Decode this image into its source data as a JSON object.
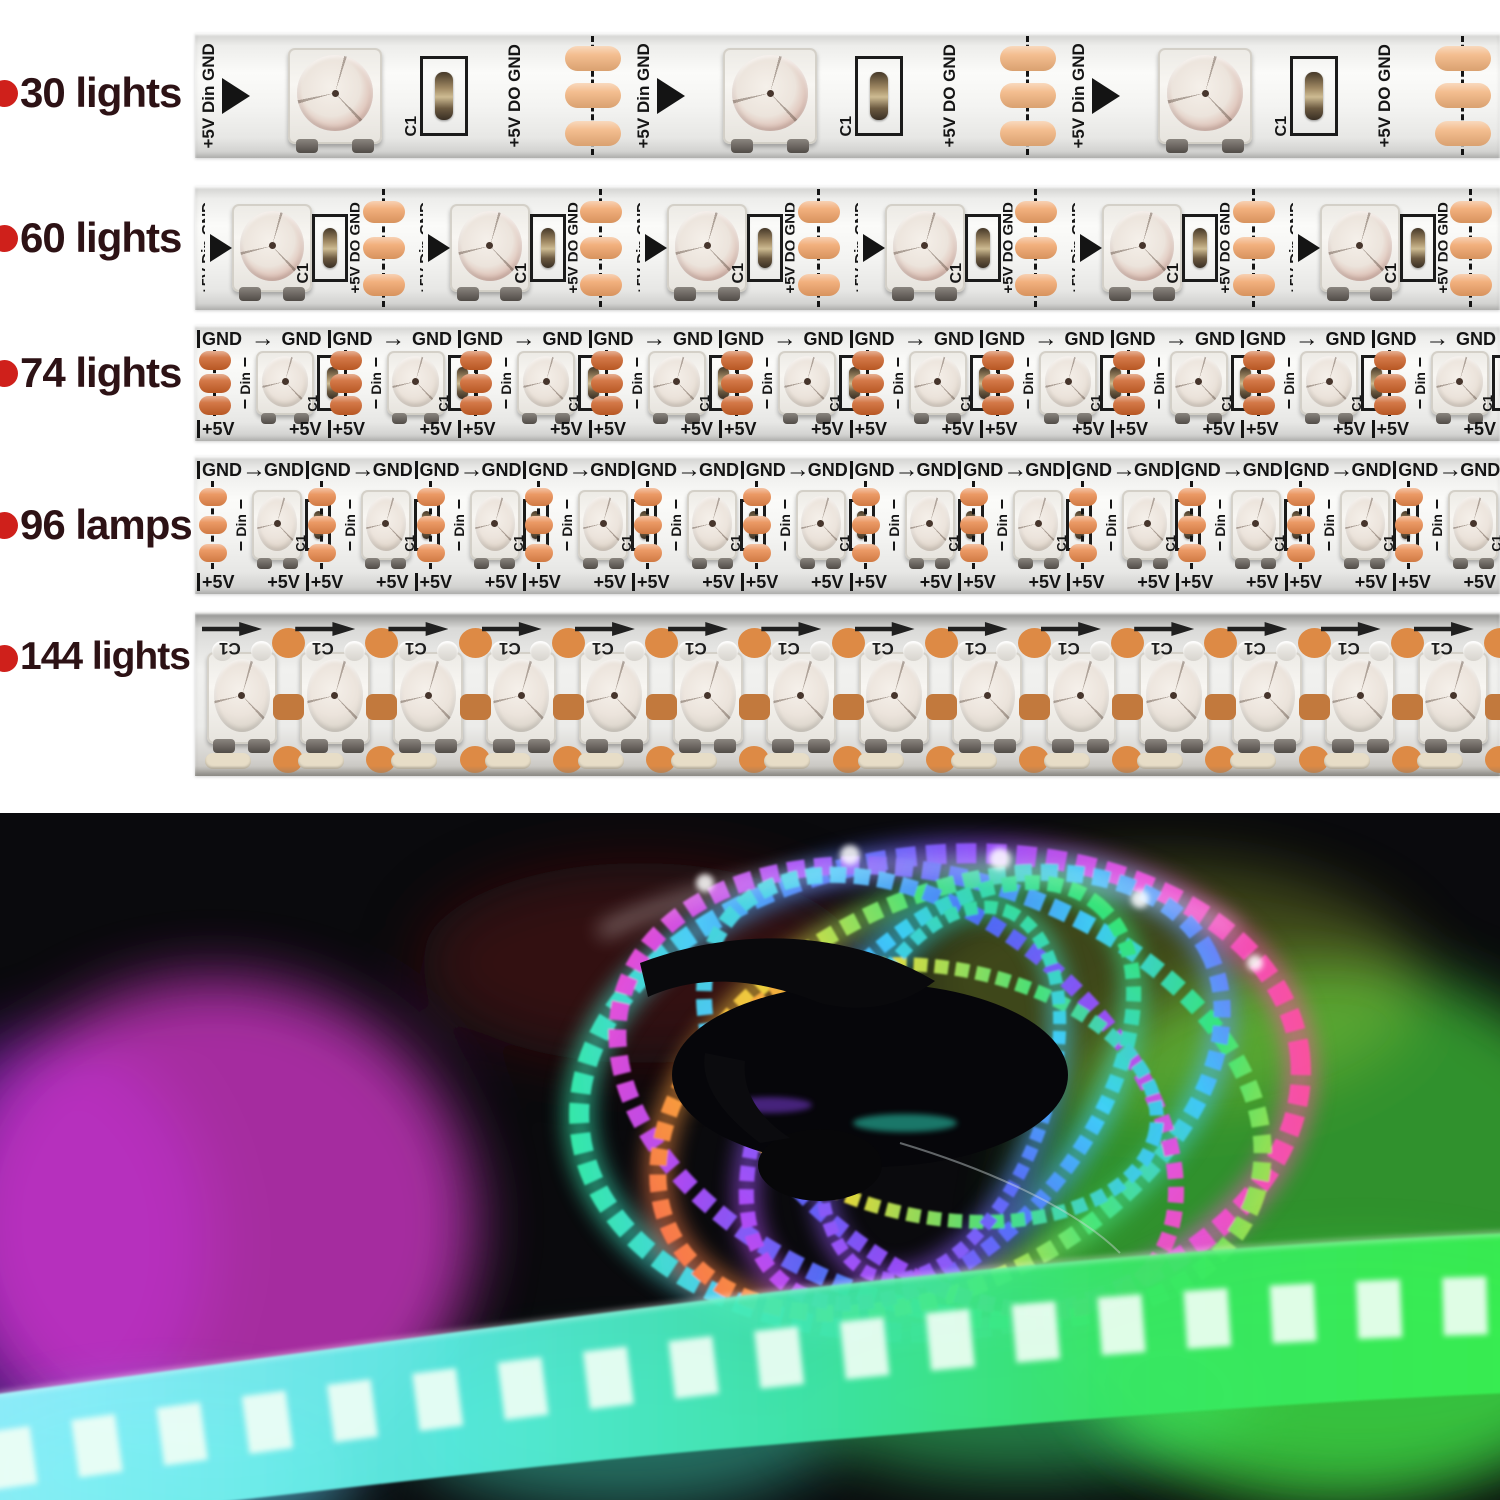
{
  "rows": [
    {
      "label": "30 lights",
      "type": "sparse",
      "segments": 3,
      "pad_color": "#f2b37d",
      "lens_tint": "#d6afa3"
    },
    {
      "label": "60 lights",
      "type": "sparse",
      "segments": 6,
      "pad_color": "#f0a368",
      "lens_tint": "#d6afa3"
    },
    {
      "label": "74 lights",
      "type": "flat",
      "segments": 10,
      "pad_color": "#cc6128",
      "lens_tint": "#ded3c7"
    },
    {
      "label": "96 lamps",
      "type": "flat",
      "segments": 12,
      "pad_color": "#e8884b",
      "lens_tint": "#ded3c7"
    },
    {
      "label": "144 lights",
      "type": "dense",
      "segments": 14,
      "pad_color": "#dd8a45",
      "lens_tint": "#d9d3c9"
    }
  ],
  "strip_text": {
    "plus5v": "+5V",
    "din": "Din",
    "dout": "DO",
    "gnd": "GND",
    "cap": "C1",
    "arrow": "→"
  },
  "colors": {
    "label_text": "#2d1215",
    "bullet_red": "#cf201b",
    "strip_body": "#efefed"
  },
  "photo": {
    "palette": {
      "background": "#0a0a0d",
      "magenta_glow": "#e23ad8",
      "purple_glow": "#7a1fd0",
      "green_glow": "#45d83e",
      "cyan_strip": "#7df2ff",
      "green_strip": "#3bee55",
      "yellow_led": "#d8e23f",
      "red_led": "#ff5a5a"
    }
  }
}
